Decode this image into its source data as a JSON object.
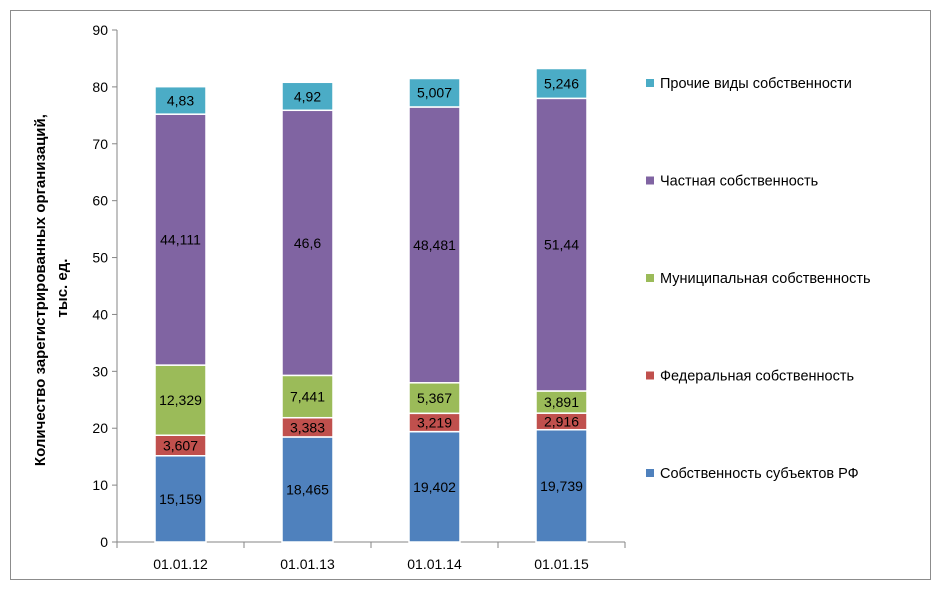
{
  "chart_data": {
    "type": "bar",
    "stacked": true,
    "categories": [
      "01.01.12",
      "01.01.13",
      "01.01.14",
      "01.01.15"
    ],
    "ylabel": [
      "Количество зарегистрированных организаций,",
      "тыс. ед."
    ],
    "ylim": [
      0,
      90
    ],
    "yticks": [
      0,
      10,
      20,
      30,
      40,
      50,
      60,
      70,
      80,
      90
    ],
    "grid": false,
    "legend_position": "right",
    "series": [
      {
        "name": "Собственность субъектов РФ",
        "color": "#4f81bd",
        "values": [
          15.159,
          18.465,
          19.402,
          19.739
        ],
        "labels": [
          "15,159",
          "18,465",
          "19,402",
          "19,739"
        ]
      },
      {
        "name": "Федеральная собственность",
        "color": "#c0504d",
        "values": [
          3.607,
          3.383,
          3.219,
          2.916
        ],
        "labels": [
          "3,607",
          "3,383",
          "3,219",
          "2,916"
        ]
      },
      {
        "name": "Муниципальная собственность",
        "color": "#9bbb59",
        "values": [
          12.329,
          7.441,
          5.367,
          3.891
        ],
        "labels": [
          "12,329",
          "7,441",
          "5,367",
          "3,891"
        ]
      },
      {
        "name": "Частная собственность",
        "color": "#8064a2",
        "values": [
          44.111,
          46.6,
          48.481,
          51.44
        ],
        "labels": [
          "44,111",
          "46,6",
          "48,481",
          "51,44"
        ]
      },
      {
        "name": "Прочие виды собственности",
        "color": "#4bacc6",
        "values": [
          4.83,
          4.92,
          5.007,
          5.246
        ],
        "labels": [
          "4,83",
          "4,92",
          "5,007",
          "5,246"
        ]
      }
    ]
  }
}
